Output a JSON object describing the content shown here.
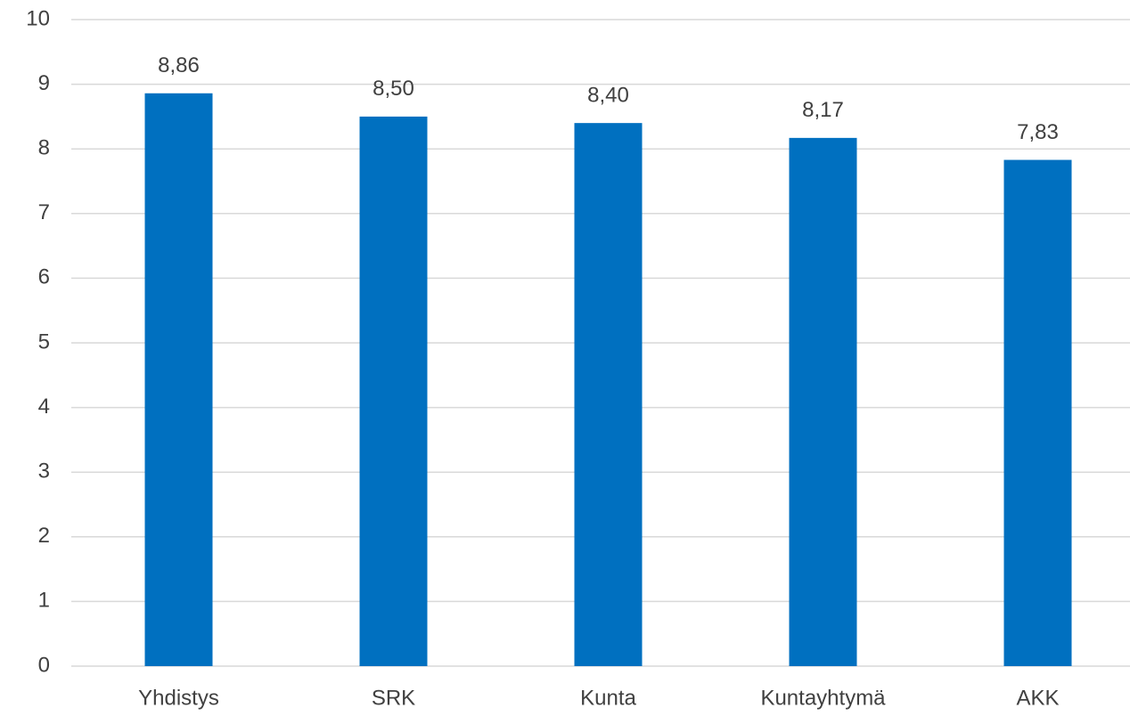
{
  "chart_data": {
    "type": "bar",
    "categories": [
      "Yhdistys",
      "SRK",
      "Kunta",
      "Kuntayhtymä",
      "AKK"
    ],
    "values": [
      8.86,
      8.5,
      8.4,
      8.17,
      7.83
    ],
    "value_labels": [
      "8,86",
      "8,50",
      "8,40",
      "8,17",
      "7,83"
    ],
    "color": "#0070c0",
    "ylim": [
      0,
      10
    ],
    "yticks": [
      0,
      1,
      2,
      3,
      4,
      5,
      6,
      7,
      8,
      9,
      10
    ],
    "grid": true
  }
}
